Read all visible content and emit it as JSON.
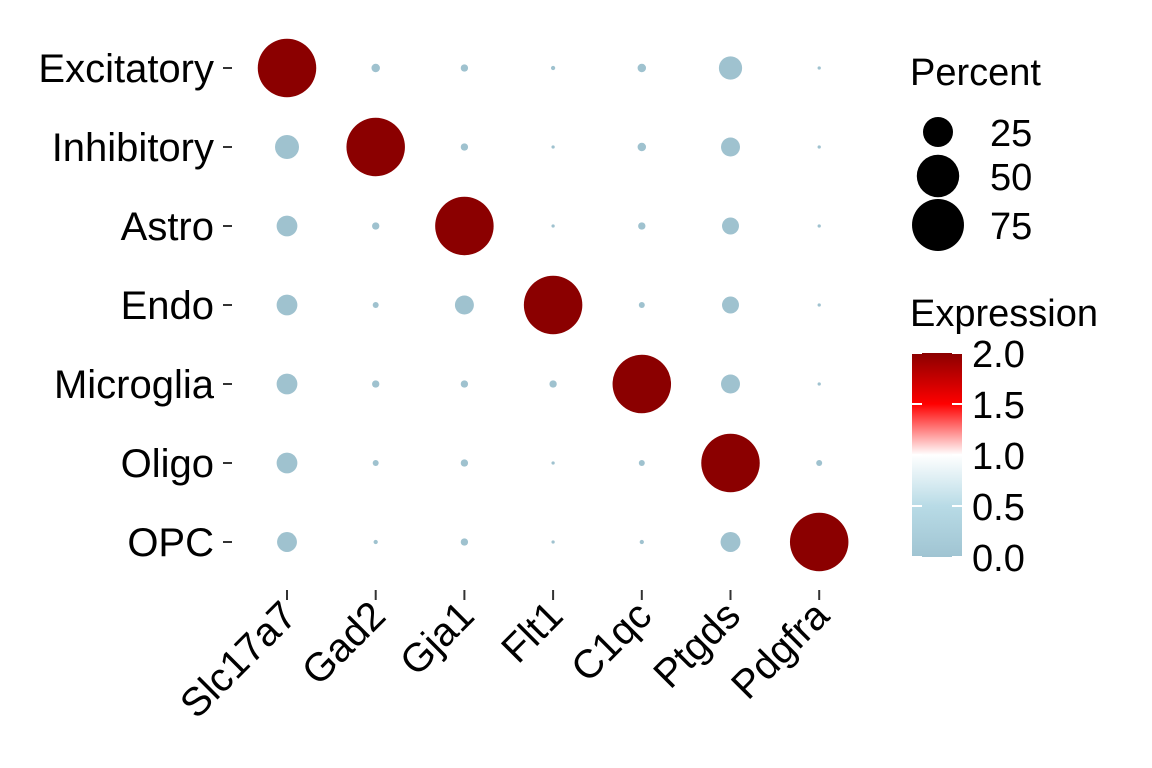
{
  "chart_data": {
    "type": "dot",
    "genes": [
      "Slc17a7",
      "Gad2",
      "Gja1",
      "Flt1",
      "C1qc",
      "Ptgds",
      "Pdgfra"
    ],
    "cell_types": [
      "Excitatory",
      "Inhibitory",
      "Astro",
      "Endo",
      "Microglia",
      "Oligo",
      "OPC"
    ],
    "percent": [
      [
        95,
        2,
        1.5,
        0.5,
        2,
        15,
        0.3
      ],
      [
        16,
        95,
        1.5,
        0.3,
        2,
        10,
        0.3
      ],
      [
        12,
        1.5,
        95,
        0.3,
        1.5,
        8,
        0.3
      ],
      [
        12,
        1,
        10,
        95,
        1,
        8,
        0.3
      ],
      [
        12,
        1.5,
        1.5,
        1.5,
        95,
        10,
        0.3
      ],
      [
        12,
        1,
        1.5,
        0.3,
        1,
        95,
        1
      ],
      [
        11,
        0.5,
        1.5,
        0.3,
        0.5,
        11,
        95
      ]
    ],
    "expression": [
      [
        2.0,
        0,
        0,
        0,
        0,
        0,
        0
      ],
      [
        0,
        2.0,
        0,
        0,
        0,
        0,
        0
      ],
      [
        0,
        0,
        2.0,
        0,
        0,
        0,
        0
      ],
      [
        0,
        0,
        0,
        2.0,
        0,
        0,
        0
      ],
      [
        0,
        0,
        0,
        0,
        2.0,
        0,
        0
      ],
      [
        0,
        0,
        0,
        0,
        0,
        2.0,
        0
      ],
      [
        0,
        0,
        0,
        0,
        0,
        0,
        2.0
      ]
    ],
    "size_legend": {
      "title": "Percent",
      "labels": [
        "25",
        "50",
        "75"
      ],
      "values": [
        25,
        50,
        75
      ]
    },
    "color_legend": {
      "title": "Expression",
      "labels": [
        "2.0",
        "1.5",
        "1.0",
        "0.5",
        "0.0"
      ],
      "values": [
        2.0,
        1.5,
        1.0,
        0.5,
        0.0
      ],
      "range": [
        0,
        2
      ],
      "colors": {
        "low": "#a0c4d2",
        "mid": "#ffffff",
        "high": "#8b0000",
        "red": "#ff0000"
      }
    },
    "dot_color_low": "#9fc2cf",
    "dot_color_high": "#8b0000"
  }
}
